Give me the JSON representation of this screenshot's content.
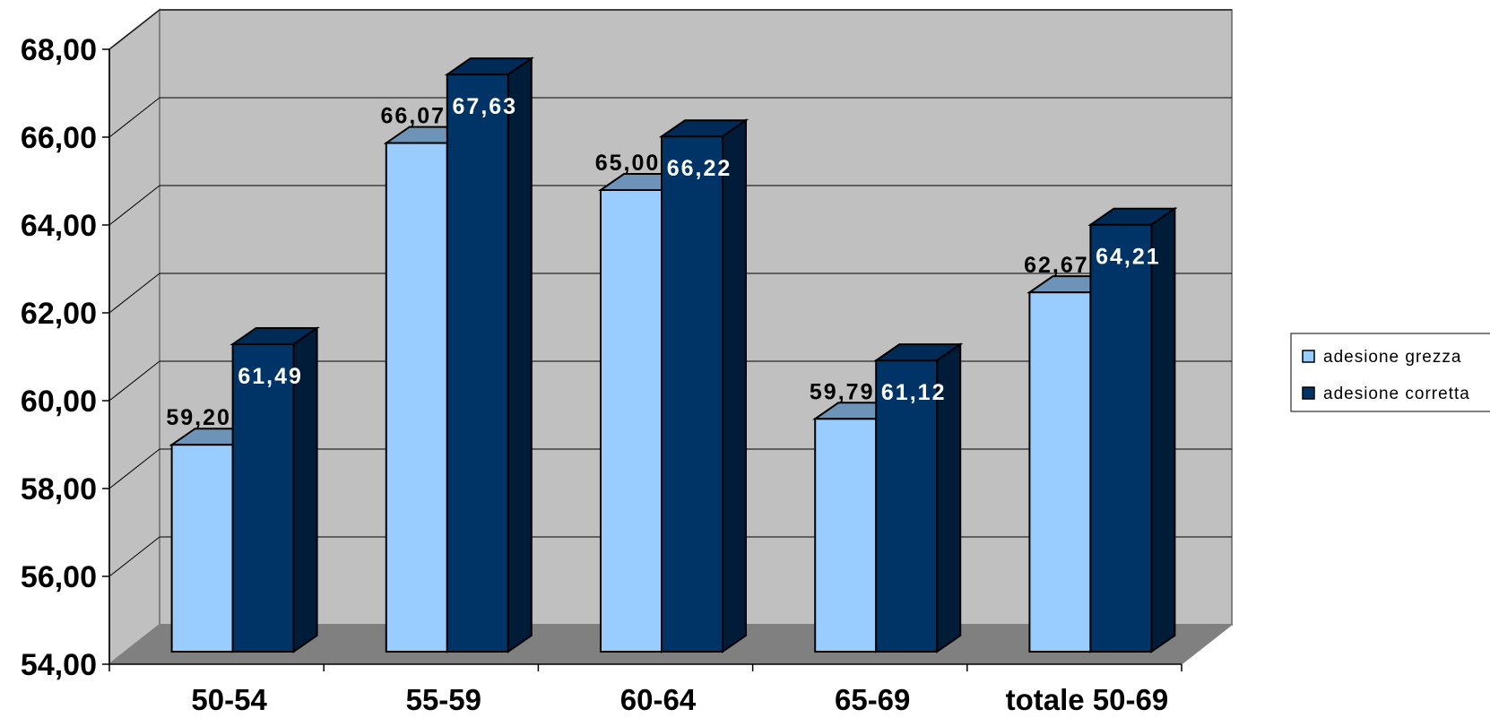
{
  "chart_data": {
    "type": "bar",
    "title": "",
    "xlabel": "",
    "ylabel": "",
    "categories": [
      "50-54",
      "55-59",
      "60-64",
      "65-69",
      "totale 50-69"
    ],
    "series": [
      {
        "name": "adesione grezza",
        "values": [
          59.2,
          66.07,
          65.0,
          59.79,
          62.67
        ],
        "labels": [
          "59,20",
          "66,07",
          "65,00",
          "59,79",
          "62,67"
        ],
        "color": "#99CCFF",
        "label_color": "#000000"
      },
      {
        "name": "adesione corretta",
        "values": [
          61.49,
          67.63,
          66.22,
          61.12,
          64.21
        ],
        "labels": [
          "61,49",
          "67,63",
          "66,22",
          "61,12",
          "64,21"
        ],
        "color": "#003366",
        "label_color": "#ffffff"
      }
    ],
    "ylim": [
      54,
      68
    ],
    "yticks": [
      "54,00",
      "56,00",
      "58,00",
      "60,00",
      "62,00",
      "64,00",
      "66,00",
      "68,00"
    ],
    "ytick_values": [
      54,
      56,
      58,
      60,
      62,
      64,
      66,
      68
    ],
    "grid": true,
    "three_d": true,
    "legend_position": "right",
    "colors": {
      "wall": "#C0C0C0",
      "floor": "#808080"
    }
  }
}
